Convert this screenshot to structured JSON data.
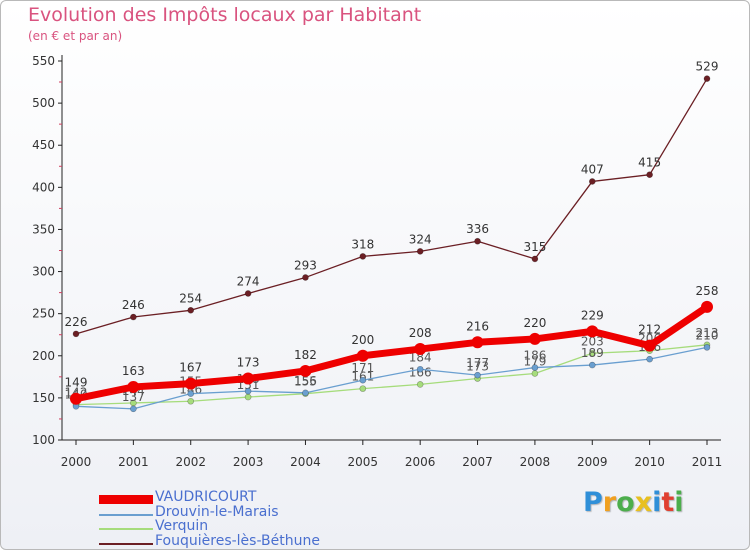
{
  "header": {
    "title": "Evolution des Impôts locaux par Habitant",
    "subtitle": "(en € et par an)"
  },
  "logo": {
    "letters": [
      "P",
      "r",
      "o",
      "x",
      "i",
      "t",
      "i"
    ],
    "colors": [
      "#2f8fd8",
      "#f0a020",
      "#4cae4c",
      "#e8c020",
      "#2f8fd8",
      "#e04030",
      "#4cae4c"
    ]
  },
  "chart_data": {
    "type": "line",
    "title": "Evolution des Impôts locaux par Habitant",
    "subtitle": "(en € et par an)",
    "x": [
      "2000",
      "2001",
      "2002",
      "2003",
      "2004",
      "2005",
      "2006",
      "2007",
      "2008",
      "2009",
      "2010",
      "2011"
    ],
    "ylim": [
      100,
      550
    ],
    "yticks": [
      100,
      150,
      200,
      250,
      300,
      350,
      400,
      450,
      500,
      550
    ],
    "grid": false,
    "legend_placement": "bottom-left",
    "series": [
      {
        "name": "Fouquières-lès-Béthune",
        "color": "#6b1f24",
        "values": [
          226,
          246,
          254,
          274,
          293,
          318,
          324,
          336,
          315,
          407,
          415,
          529
        ]
      },
      {
        "name": "Verquin",
        "color": "#a6dc7c",
        "values": [
          142,
          144,
          146,
          151,
          155,
          161,
          166,
          173,
          179,
          203,
          206,
          213
        ]
      },
      {
        "name": "Drouvin-le-Marais",
        "color": "#6a9fd0",
        "values": [
          140,
          137,
          155,
          158,
          156,
          171,
          184,
          177,
          186,
          189,
          196,
          210
        ]
      },
      {
        "name": "VAUDRICOURT",
        "color": "#ee0000",
        "values": [
          149,
          163,
          167,
          173,
          182,
          200,
          208,
          216,
          220,
          229,
          212,
          258
        ]
      }
    ]
  }
}
